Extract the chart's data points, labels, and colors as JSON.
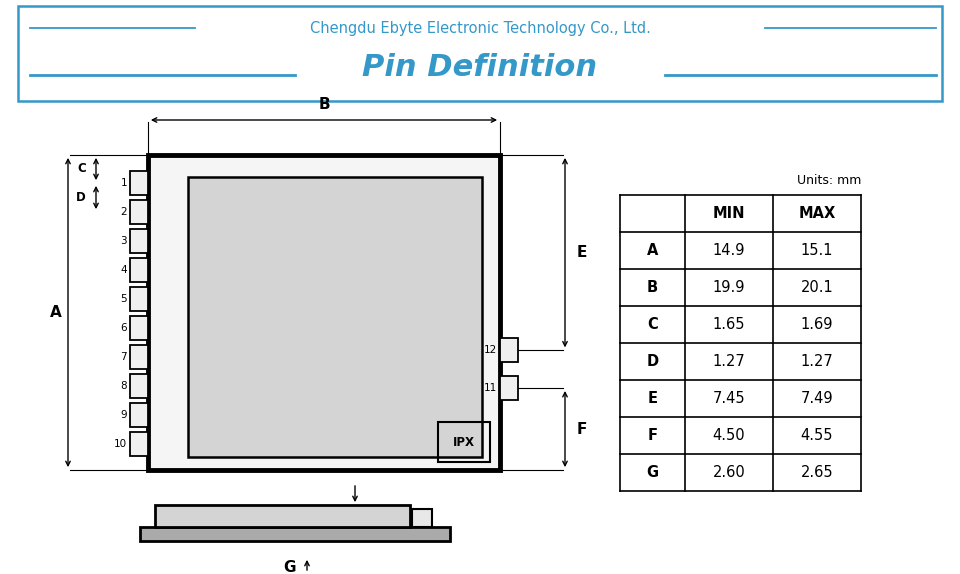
{
  "title_company": "Chengdu Ebyte Electronic Technology Co., Ltd.",
  "title_main": "Pin Definition",
  "title_color": "#3498C8",
  "company_color": "#3498C8",
  "line_color": "#3498C8",
  "background_color": "#ffffff",
  "table_data": {
    "headers": [
      "",
      "MIN",
      "MAX"
    ],
    "rows": [
      [
        "A",
        "14.9",
        "15.1"
      ],
      [
        "B",
        "19.9",
        "20.1"
      ],
      [
        "C",
        "1.65",
        "1.69"
      ],
      [
        "D",
        "1.27",
        "1.27"
      ],
      [
        "E",
        "7.45",
        "7.49"
      ],
      [
        "F",
        "4.50",
        "4.55"
      ],
      [
        "G",
        "2.60",
        "2.65"
      ]
    ],
    "units_label": "Units: mm"
  },
  "pin_labels_left": [
    "1",
    "2",
    "3",
    "4",
    "5",
    "6",
    "7",
    "8",
    "9",
    "10"
  ],
  "pin_labels_right": [
    "12",
    "11"
  ]
}
